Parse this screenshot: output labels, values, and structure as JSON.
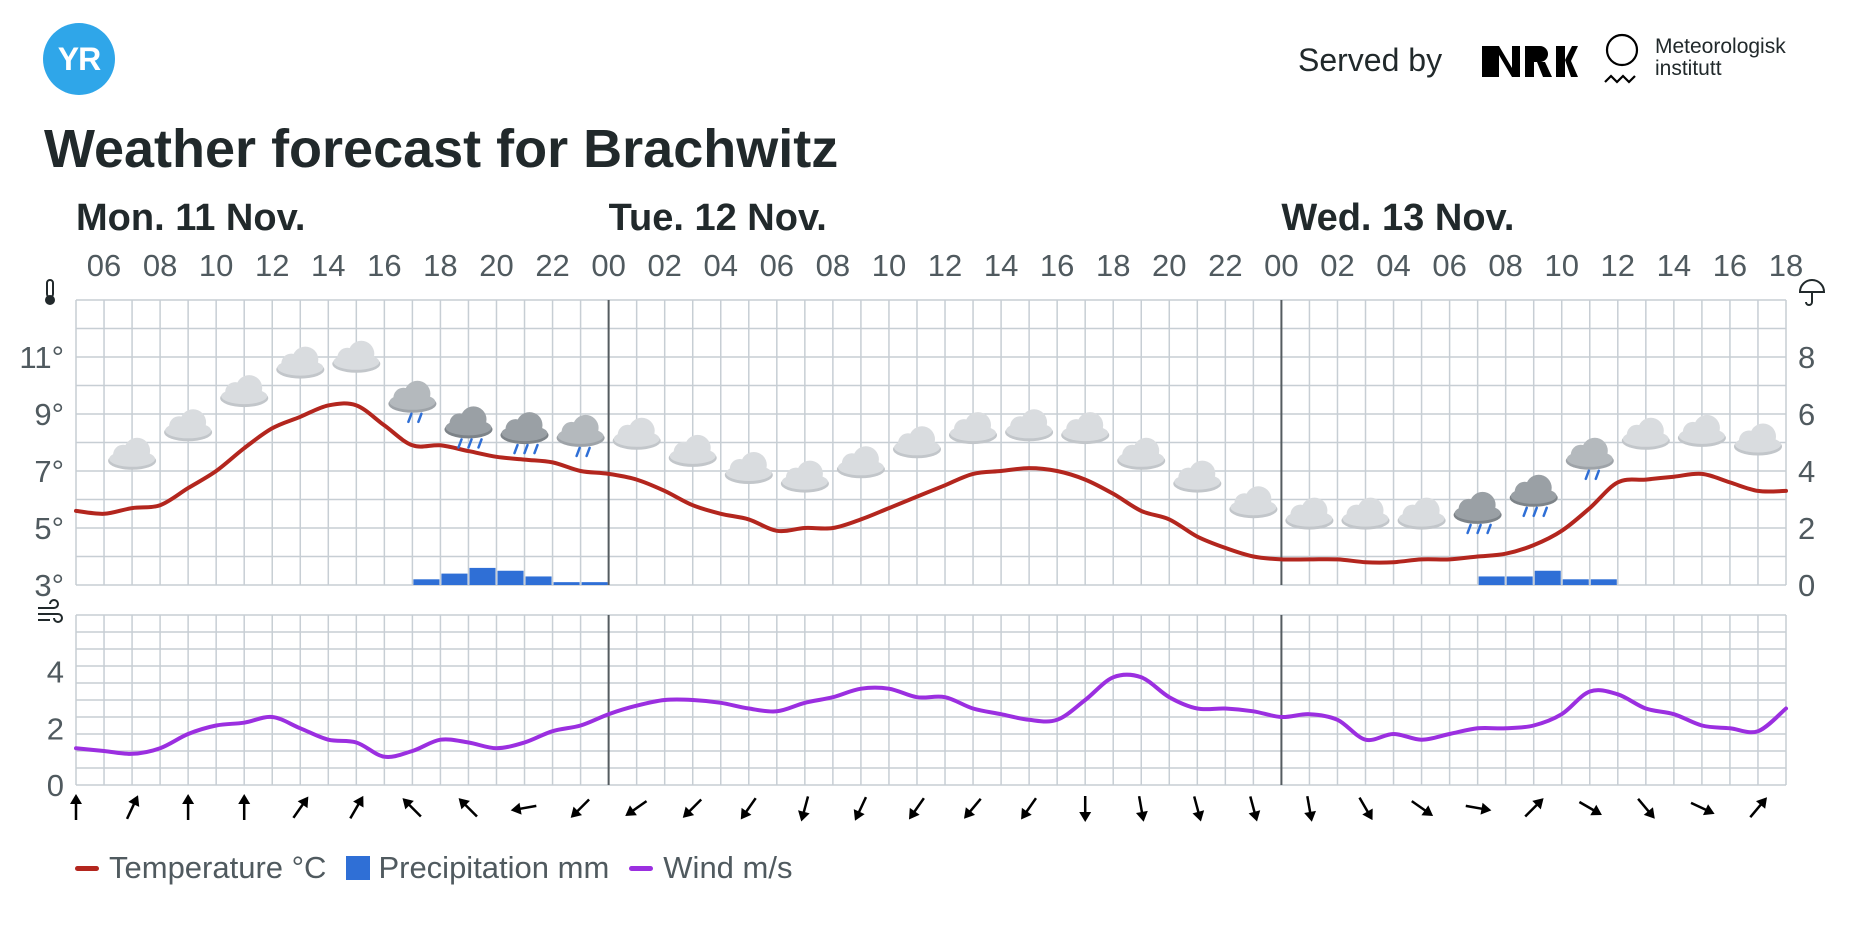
{
  "header": {
    "logo_text": "YR",
    "served_by": "Served by",
    "nrk_logo": "NRK",
    "met_line1": "Meteorologisk",
    "met_line2": "institutt"
  },
  "title": "Weather forecast for Brachwitz",
  "colors": {
    "temperature": "#b3261e",
    "precipitation": "#2f6fd6",
    "wind": "#9b2fe0",
    "grid": "#c7ced4",
    "day_divider": "#555c60"
  },
  "legend": {
    "temperature": "Temperature °C",
    "precipitation": "Precipitation mm",
    "wind": "Wind m/s"
  },
  "chart_data": {
    "type": "line",
    "days": [
      {
        "label": "Mon. 11 Nov.",
        "start_hour": 5
      },
      {
        "label": "Tue. 12 Nov.",
        "start_hour": 24
      },
      {
        "label": "Wed. 13 Nov.",
        "start_hour": 48
      }
    ],
    "hour_range": [
      5,
      66
    ],
    "x_tick_labels": [
      "06",
      "08",
      "10",
      "12",
      "14",
      "16",
      "18",
      "20",
      "22",
      "00",
      "02",
      "04",
      "06",
      "08",
      "10",
      "12",
      "14",
      "16",
      "18",
      "20",
      "22",
      "00",
      "02",
      "04",
      "06",
      "08",
      "10",
      "12",
      "14",
      "16",
      "18"
    ],
    "x_tick_hours": [
      6,
      8,
      10,
      12,
      14,
      16,
      18,
      20,
      22,
      24,
      26,
      28,
      30,
      32,
      34,
      36,
      38,
      40,
      42,
      44,
      46,
      48,
      50,
      52,
      54,
      56,
      58,
      60,
      62,
      64,
      66
    ],
    "temperature": {
      "unit": "°C",
      "y_ticks": [
        "3°",
        "5°",
        "7°",
        "9°",
        "11°"
      ],
      "ylim": [
        3,
        13
      ],
      "hours": [
        5,
        6,
        7,
        8,
        9,
        10,
        11,
        12,
        13,
        14,
        15,
        16,
        17,
        18,
        19,
        20,
        21,
        22,
        23,
        24,
        25,
        26,
        27,
        28,
        29,
        30,
        31,
        32,
        33,
        34,
        35,
        36,
        37,
        38,
        39,
        40,
        41,
        42,
        43,
        44,
        45,
        46,
        47,
        48,
        49,
        50,
        51,
        52,
        53,
        54,
        55,
        56,
        57,
        58,
        59,
        60,
        61,
        62,
        63,
        64,
        65,
        66
      ],
      "values": [
        5.6,
        5.5,
        5.7,
        5.8,
        6.4,
        7.0,
        7.8,
        8.5,
        8.9,
        9.3,
        9.3,
        8.6,
        7.9,
        7.9,
        7.7,
        7.5,
        7.4,
        7.3,
        7.0,
        6.9,
        6.7,
        6.3,
        5.8,
        5.5,
        5.3,
        4.9,
        5.0,
        5.0,
        5.3,
        5.7,
        6.1,
        6.5,
        6.9,
        7.0,
        7.1,
        7.0,
        6.7,
        6.2,
        5.6,
        5.3,
        4.7,
        4.3,
        4.0,
        3.9,
        3.9,
        3.9,
        3.8,
        3.8,
        3.9,
        3.9,
        4.0,
        4.1,
        4.4,
        4.9,
        5.7,
        6.6,
        6.7,
        6.8,
        6.9,
        6.6,
        6.3,
        6.3
      ]
    },
    "precipitation": {
      "unit": "mm",
      "y_ticks": [
        "0",
        "2",
        "4",
        "6",
        "8"
      ],
      "ylim": [
        0,
        10
      ],
      "bars": [
        {
          "hour": 17,
          "value": 0.2
        },
        {
          "hour": 18,
          "value": 0.4
        },
        {
          "hour": 19,
          "value": 0.6
        },
        {
          "hour": 20,
          "value": 0.5
        },
        {
          "hour": 21,
          "value": 0.3
        },
        {
          "hour": 22,
          "value": 0.1
        },
        {
          "hour": 23,
          "value": 0.1
        },
        {
          "hour": 55,
          "value": 0.3
        },
        {
          "hour": 56,
          "value": 0.3
        },
        {
          "hour": 57,
          "value": 0.5
        },
        {
          "hour": 58,
          "value": 0.2
        },
        {
          "hour": 59,
          "value": 0.2
        }
      ]
    },
    "symbols": {
      "hours": [
        7,
        9,
        11,
        13,
        15,
        17,
        19,
        21,
        23,
        25,
        27,
        29,
        31,
        33,
        35,
        37,
        39,
        41,
        43,
        45,
        47,
        49,
        51,
        53,
        55,
        57,
        59,
        61,
        63,
        65
      ],
      "types": [
        "cloudy",
        "cloudy",
        "cloudy",
        "cloudy",
        "cloudy",
        "light-rain",
        "rain",
        "rain",
        "light-rain",
        "cloudy",
        "cloudy",
        "cloudy",
        "cloudy",
        "cloudy",
        "cloudy",
        "cloudy",
        "cloudy",
        "cloudy",
        "cloudy",
        "cloudy",
        "cloudy",
        "cloudy",
        "cloudy",
        "cloudy",
        "rain",
        "rain",
        "light-rain",
        "cloudy",
        "cloudy",
        "cloudy"
      ],
      "levels": [
        7.5,
        8.5,
        9.7,
        10.7,
        10.9,
        9.5,
        8.6,
        8.4,
        8.3,
        8.2,
        7.6,
        7.0,
        6.7,
        7.2,
        7.9,
        8.4,
        8.5,
        8.4,
        7.5,
        6.7,
        5.8,
        5.4,
        5.4,
        5.4,
        5.6,
        6.2,
        7.5,
        8.2,
        8.3,
        8.0
      ]
    },
    "wind": {
      "unit": "m/s",
      "y_ticks": [
        "0",
        "2",
        "4"
      ],
      "ylim": [
        0,
        6
      ],
      "hours": [
        5,
        6,
        7,
        8,
        9,
        10,
        11,
        12,
        13,
        14,
        15,
        16,
        17,
        18,
        19,
        20,
        21,
        22,
        23,
        24,
        25,
        26,
        27,
        28,
        29,
        30,
        31,
        32,
        33,
        34,
        35,
        36,
        37,
        38,
        39,
        40,
        41,
        42,
        43,
        44,
        45,
        46,
        47,
        48,
        49,
        50,
        51,
        52,
        53,
        54,
        55,
        56,
        57,
        58,
        59,
        60,
        61,
        62,
        63,
        64,
        65,
        66
      ],
      "values": [
        1.3,
        1.2,
        1.1,
        1.3,
        1.8,
        2.1,
        2.2,
        2.4,
        2.0,
        1.6,
        1.5,
        1.0,
        1.2,
        1.6,
        1.5,
        1.3,
        1.5,
        1.9,
        2.1,
        2.5,
        2.8,
        3.0,
        3.0,
        2.9,
        2.7,
        2.6,
        2.9,
        3.1,
        3.4,
        3.4,
        3.1,
        3.1,
        2.7,
        2.5,
        2.3,
        2.3,
        3.0,
        3.8,
        3.8,
        3.1,
        2.7,
        2.7,
        2.6,
        2.4,
        2.5,
        2.3,
        1.6,
        1.8,
        1.6,
        1.8,
        2.0,
        2.0,
        2.1,
        2.5,
        3.3,
        3.2,
        2.7,
        2.5,
        2.1,
        2.0,
        1.9,
        2.7
      ]
    },
    "wind_directions": {
      "hours": [
        5,
        7,
        9,
        11,
        13,
        15,
        17,
        19,
        21,
        23,
        25,
        27,
        29,
        31,
        33,
        35,
        37,
        39,
        41,
        43,
        45,
        47,
        49,
        51,
        53,
        55,
        57,
        59,
        61,
        63,
        65
      ],
      "rotation_deg": [
        0,
        25,
        0,
        0,
        35,
        30,
        -45,
        -45,
        -100,
        -135,
        -125,
        -135,
        -145,
        -165,
        -155,
        -145,
        -140,
        -145,
        180,
        170,
        165,
        165,
        170,
        150,
        125,
        100,
        45,
        120,
        140,
        115,
        40
      ]
    },
    "side_icons": [
      "thermometer-icon",
      "umbrella-icon",
      "wind-icon"
    ]
  }
}
